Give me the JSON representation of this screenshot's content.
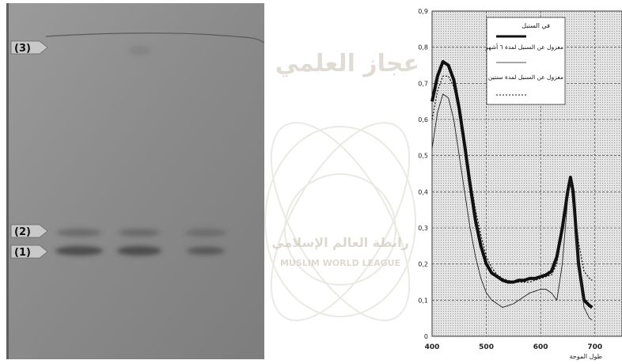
{
  "watermark": {
    "arabic_text": "عجاز العلمي",
    "league_arabic": "رابطة العالم الإسلامي",
    "league_english": "MUSLIM WORLD LEAGUE"
  },
  "gel": {
    "markers": [
      {
        "label": "(3)"
      },
      {
        "label": "(2)"
      },
      {
        "label": "(1)"
      }
    ],
    "colors": {
      "background": "#8e8e8e",
      "band": "#4a4a4a"
    }
  },
  "chart_data": {
    "type": "line",
    "xlabel": "طول الموجة",
    "ylabel": "",
    "xlim": [
      400,
      750
    ],
    "ylim": [
      0,
      0.9
    ],
    "xticks": [
      "400",
      "500",
      "600",
      "700"
    ],
    "yticks": [
      "0",
      "0,1",
      "0,2",
      "0,3",
      "0,4",
      "0,5",
      "0,6",
      "0,7",
      "0,8",
      "0,9"
    ],
    "grid": true,
    "legend_position": "top-right",
    "series": [
      {
        "name": "في السنبل",
        "style": "thick",
        "points": [
          [
            400,
            0.65
          ],
          [
            410,
            0.72
          ],
          [
            420,
            0.76
          ],
          [
            430,
            0.75
          ],
          [
            440,
            0.71
          ],
          [
            450,
            0.63
          ],
          [
            460,
            0.53
          ],
          [
            470,
            0.42
          ],
          [
            480,
            0.32
          ],
          [
            490,
            0.25
          ],
          [
            500,
            0.2
          ],
          [
            510,
            0.175
          ],
          [
            520,
            0.165
          ],
          [
            530,
            0.155
          ],
          [
            540,
            0.15
          ],
          [
            550,
            0.15
          ],
          [
            560,
            0.155
          ],
          [
            570,
            0.155
          ],
          [
            580,
            0.16
          ],
          [
            590,
            0.16
          ],
          [
            600,
            0.165
          ],
          [
            610,
            0.17
          ],
          [
            620,
            0.18
          ],
          [
            630,
            0.22
          ],
          [
            640,
            0.3
          ],
          [
            650,
            0.4
          ],
          [
            655,
            0.44
          ],
          [
            660,
            0.4
          ],
          [
            665,
            0.3
          ],
          [
            670,
            0.2
          ],
          [
            680,
            0.1
          ],
          [
            690,
            0.085
          ],
          [
            695,
            0.08
          ]
        ]
      },
      {
        "name": "معزول عن السنبل لمدة ٦ أشهر",
        "style": "thin",
        "points": [
          [
            400,
            0.52
          ],
          [
            410,
            0.62
          ],
          [
            420,
            0.67
          ],
          [
            430,
            0.66
          ],
          [
            440,
            0.6
          ],
          [
            450,
            0.5
          ],
          [
            460,
            0.4
          ],
          [
            470,
            0.3
          ],
          [
            480,
            0.22
          ],
          [
            490,
            0.16
          ],
          [
            500,
            0.12
          ],
          [
            510,
            0.1
          ],
          [
            520,
            0.09
          ],
          [
            530,
            0.08
          ],
          [
            540,
            0.085
          ],
          [
            550,
            0.09
          ],
          [
            560,
            0.1
          ],
          [
            570,
            0.11
          ],
          [
            580,
            0.12
          ],
          [
            590,
            0.125
          ],
          [
            600,
            0.13
          ],
          [
            610,
            0.13
          ],
          [
            620,
            0.12
          ],
          [
            630,
            0.1
          ],
          [
            640,
            0.2
          ],
          [
            650,
            0.38
          ],
          [
            655,
            0.43
          ],
          [
            660,
            0.36
          ],
          [
            670,
            0.2
          ],
          [
            680,
            0.08
          ],
          [
            690,
            0.05
          ],
          [
            695,
            0.045
          ]
        ]
      },
      {
        "name": "معزول عن السنبل لمدة سنتين",
        "style": "dotted",
        "points": [
          [
            400,
            0.6
          ],
          [
            410,
            0.68
          ],
          [
            420,
            0.72
          ],
          [
            430,
            0.72
          ],
          [
            440,
            0.69
          ],
          [
            450,
            0.62
          ],
          [
            460,
            0.53
          ],
          [
            470,
            0.44
          ],
          [
            480,
            0.35
          ],
          [
            490,
            0.28
          ],
          [
            500,
            0.22
          ],
          [
            510,
            0.19
          ],
          [
            520,
            0.17
          ],
          [
            530,
            0.16
          ],
          [
            540,
            0.155
          ],
          [
            550,
            0.15
          ],
          [
            560,
            0.15
          ],
          [
            570,
            0.15
          ],
          [
            580,
            0.15
          ],
          [
            590,
            0.155
          ],
          [
            600,
            0.16
          ],
          [
            610,
            0.165
          ],
          [
            620,
            0.17
          ],
          [
            630,
            0.2
          ],
          [
            640,
            0.3
          ],
          [
            650,
            0.4
          ],
          [
            655,
            0.43
          ],
          [
            660,
            0.39
          ],
          [
            670,
            0.26
          ],
          [
            680,
            0.18
          ],
          [
            690,
            0.16
          ],
          [
            695,
            0.155
          ]
        ]
      }
    ]
  }
}
